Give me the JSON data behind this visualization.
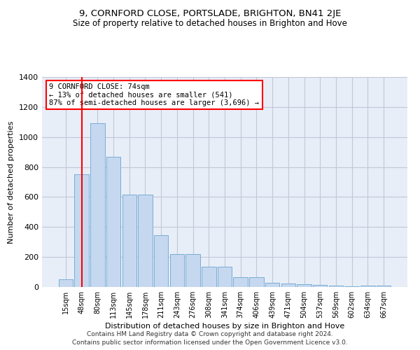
{
  "title1": "9, CORNFORD CLOSE, PORTSLADE, BRIGHTON, BN41 2JE",
  "title2": "Size of property relative to detached houses in Brighton and Hove",
  "xlabel": "Distribution of detached houses by size in Brighton and Hove",
  "ylabel": "Number of detached properties",
  "footnote1": "Contains HM Land Registry data © Crown copyright and database right 2024.",
  "footnote2": "Contains public sector information licensed under the Open Government Licence v3.0.",
  "bin_labels": [
    "15sqm",
    "48sqm",
    "80sqm",
    "113sqm",
    "145sqm",
    "178sqm",
    "211sqm",
    "243sqm",
    "276sqm",
    "308sqm",
    "341sqm",
    "374sqm",
    "406sqm",
    "439sqm",
    "471sqm",
    "504sqm",
    "537sqm",
    "569sqm",
    "602sqm",
    "634sqm",
    "667sqm"
  ],
  "bar_values": [
    50,
    750,
    1090,
    870,
    615,
    615,
    345,
    220,
    220,
    135,
    135,
    65,
    65,
    30,
    25,
    20,
    15,
    10,
    5,
    10,
    10
  ],
  "bar_color": "#c5d8f0",
  "bar_edge_color": "#7aadd4",
  "annotation_line1": "9 CORNFORD CLOSE: 74sqm",
  "annotation_line2": "← 13% of detached houses are smaller (541)",
  "annotation_line3": "87% of semi-detached houses are larger (3,696) →",
  "annotation_box_color": "white",
  "annotation_box_edge": "red",
  "vline_x": 1.0,
  "vline_color": "red",
  "ylim": [
    0,
    1400
  ],
  "yticks": [
    0,
    200,
    400,
    600,
    800,
    1000,
    1200,
    1400
  ],
  "grid_color": "#c0c8d8",
  "bg_color": "#e8eef8",
  "title1_fontsize": 9.5,
  "title2_fontsize": 8.5,
  "xlabel_fontsize": 8,
  "ylabel_fontsize": 8,
  "footnote_fontsize": 6.5
}
